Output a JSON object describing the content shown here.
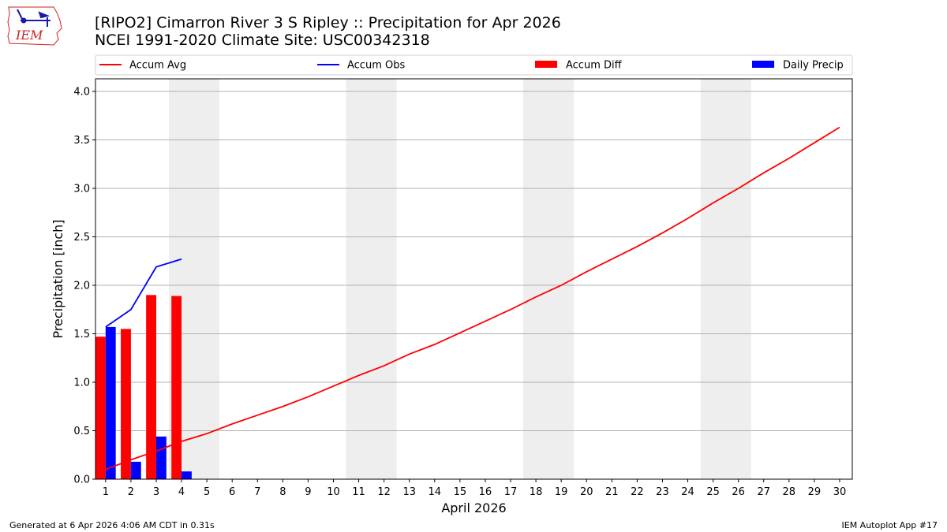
{
  "chart_data": {
    "type": "bar",
    "title": "[RIPO2] Cimarron River 3 S Ripley :: Precipitation for Apr 2026",
    "subtitle": "NCEI 1991-2020 Climate Site: USC00342318",
    "xlabel": "April 2026",
    "ylabel": "Precipitation [inch]",
    "xlim": [
      0.6,
      30.5
    ],
    "ylim": [
      0,
      4.13
    ],
    "grid": true,
    "legend": "top",
    "x": [
      1,
      2,
      3,
      4,
      5,
      6,
      7,
      8,
      9,
      10,
      11,
      12,
      13,
      14,
      15,
      16,
      17,
      18,
      19,
      20,
      21,
      22,
      23,
      24,
      25,
      26,
      27,
      28,
      29,
      30
    ],
    "x_tick_labels": [
      "1",
      "2",
      "3",
      "4",
      "5",
      "6",
      "7",
      "8",
      "9",
      "10",
      "11",
      "12",
      "13",
      "14",
      "15",
      "16",
      "17",
      "18",
      "19",
      "20",
      "21",
      "22",
      "23",
      "24",
      "25",
      "26",
      "27",
      "28",
      "29",
      "30"
    ],
    "y_ticks": [
      0.0,
      0.5,
      1.0,
      1.5,
      2.0,
      2.5,
      3.0,
      3.5,
      4.0
    ],
    "y_tick_labels": [
      "0.0",
      "0.5",
      "1.0",
      "1.5",
      "2.0",
      "2.5",
      "3.0",
      "3.5",
      "4.0"
    ],
    "weekend_shading": [
      [
        3.5,
        5.5
      ],
      [
        10.5,
        12.5
      ],
      [
        17.5,
        19.5
      ],
      [
        24.5,
        26.5
      ]
    ],
    "series": [
      {
        "name": "Accum Avg",
        "kind": "line",
        "color": "#ff0000",
        "x": [
          1,
          2,
          3,
          4,
          5,
          6,
          7,
          8,
          9,
          10,
          11,
          12,
          13,
          14,
          15,
          16,
          17,
          18,
          19,
          20,
          21,
          22,
          23,
          24,
          25,
          26,
          27,
          28,
          29,
          30
        ],
        "values": [
          0.1,
          0.2,
          0.29,
          0.39,
          0.47,
          0.57,
          0.66,
          0.75,
          0.85,
          0.96,
          1.07,
          1.17,
          1.29,
          1.39,
          1.51,
          1.63,
          1.75,
          1.88,
          2.0,
          2.14,
          2.27,
          2.4,
          2.54,
          2.69,
          2.85,
          3.0,
          3.16,
          3.31,
          3.47,
          3.63
        ]
      },
      {
        "name": "Accum Obs",
        "kind": "line",
        "color": "#0000ff",
        "x": [
          1,
          2,
          3,
          4
        ],
        "values": [
          1.57,
          1.75,
          2.19,
          2.27
        ]
      },
      {
        "name": "Accum Diff",
        "kind": "bar",
        "color": "#ff0000",
        "x": [
          1,
          2,
          3,
          4
        ],
        "values": [
          1.47,
          1.55,
          1.9,
          1.89
        ]
      },
      {
        "name": "Daily Precip",
        "kind": "bar",
        "color": "#0000ff",
        "x": [
          1,
          2,
          3,
          4
        ],
        "values": [
          1.57,
          0.18,
          0.44,
          0.08
        ]
      }
    ]
  },
  "footer": {
    "left": "Generated at 6 Apr 2026 4:06 AM CDT in 0.31s",
    "right": "IEM Autoplot App #17"
  },
  "logo": {
    "text": "IEM",
    "color": "#cc2222"
  }
}
